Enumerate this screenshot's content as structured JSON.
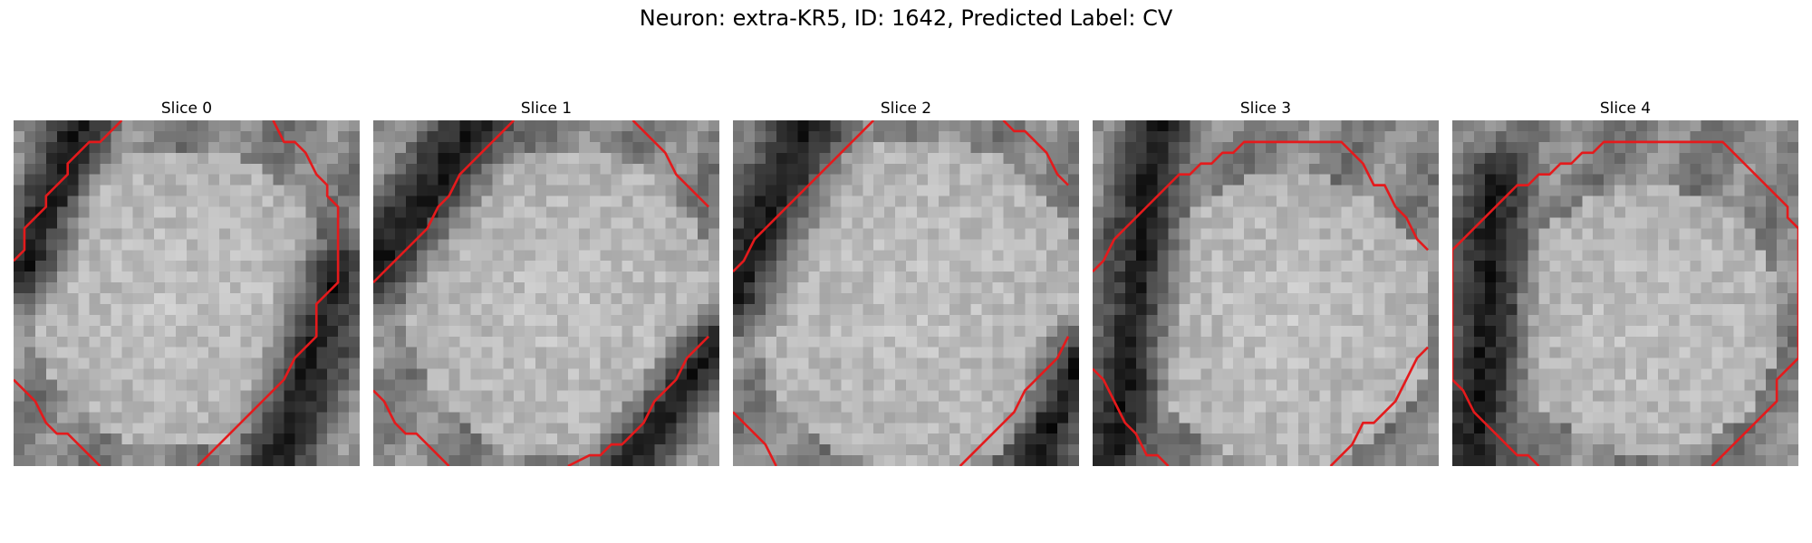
{
  "figure": {
    "title": "Neuron: extra-KR5, ID: 1642, Predicted Label: CV",
    "contour_color": "#e41a1c",
    "colormap": "gray",
    "slices": [
      {
        "label": "Slice 0"
      },
      {
        "label": "Slice 1"
      },
      {
        "label": "Slice 2"
      },
      {
        "label": "Slice 3"
      },
      {
        "label": "Slice 4"
      }
    ]
  }
}
